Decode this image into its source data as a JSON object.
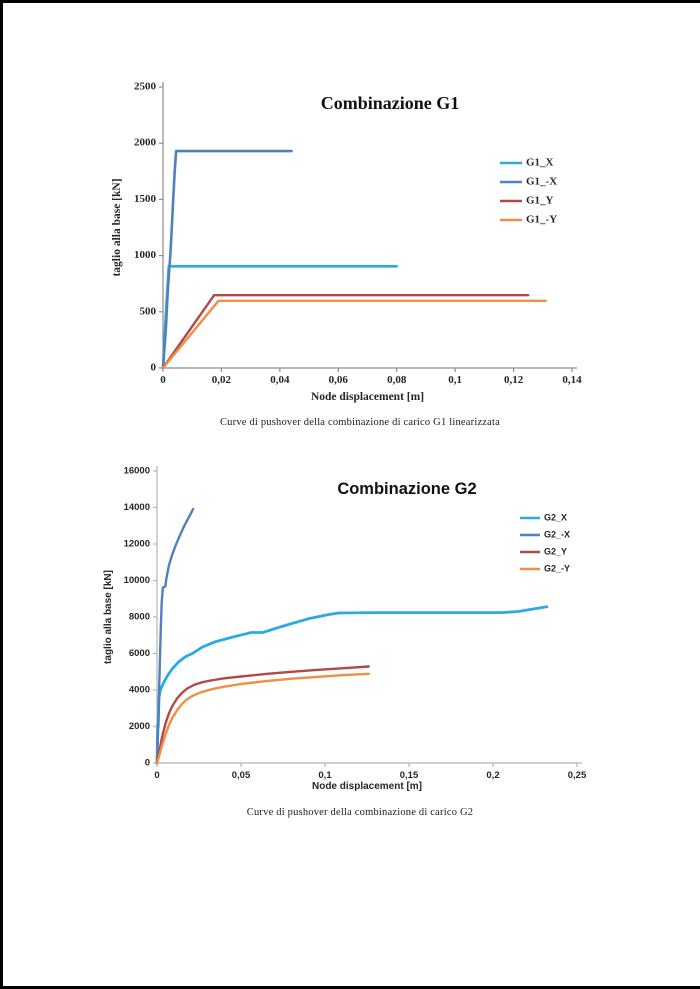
{
  "captions": {
    "chart1": "Curve di pushover della combinazione di carico G1 linearizzata",
    "chart2": "Curve di pushover della combinazione di carico G2"
  },
  "chart_data": [
    {
      "type": "line",
      "title": "Combinazione G1",
      "xlabel": "Node displacement  [m]",
      "ylabel": "taglio alla base [kN]",
      "xlim": [
        0,
        0.14
      ],
      "ylim": [
        0,
        2500
      ],
      "grid": false,
      "legend_position": "right",
      "font": "serif",
      "axis_color": "#8c8c8c",
      "xticks": {
        "values": [
          0,
          0.02,
          0.04,
          0.06,
          0.08,
          0.1,
          0.12,
          0.14
        ],
        "labels": [
          "0",
          "0,02",
          "0,04",
          "0,06",
          "0,08",
          "0,1",
          "0,12",
          "0,14"
        ]
      },
      "yticks": {
        "values": [
          0,
          500,
          1000,
          1500,
          2000,
          2500
        ],
        "labels": [
          "0",
          "500",
          "1000",
          "1500",
          "2000",
          "2500"
        ]
      },
      "series": [
        {
          "name": "G1_X",
          "color": "#29abe2",
          "width": 2.6,
          "points": [
            [
              0,
              0
            ],
            [
              0.001,
              480
            ],
            [
              0.002,
              905
            ],
            [
              0.08,
              905
            ]
          ]
        },
        {
          "name": "G1_-X",
          "color": "#4f81bd",
          "width": 2.6,
          "points": [
            [
              0,
              0
            ],
            [
              0.001,
              350
            ],
            [
              0.0015,
              620
            ],
            [
              0.002,
              820
            ],
            [
              0.0025,
              1000
            ],
            [
              0.003,
              1250
            ],
            [
              0.0035,
              1500
            ],
            [
              0.004,
              1750
            ],
            [
              0.0045,
              1930
            ],
            [
              0.044,
              1930
            ]
          ]
        },
        {
          "name": "G1_Y",
          "color": "#b04a4a",
          "width": 2.4,
          "points": [
            [
              0,
              0
            ],
            [
              0.0175,
              648
            ],
            [
              0.125,
              648
            ]
          ]
        },
        {
          "name": "G1_-Y",
          "color": "#ef8e44",
          "width": 2.4,
          "points": [
            [
              0,
              0
            ],
            [
              0.019,
              598
            ],
            [
              0.131,
              598
            ]
          ]
        }
      ]
    },
    {
      "type": "line",
      "title": "Combinazione G2",
      "xlabel": "Node displacement [m]",
      "ylabel": "taglio alla base [kN]",
      "xlim": [
        0,
        0.25
      ],
      "ylim": [
        0,
        16000
      ],
      "grid": false,
      "legend_position": "right",
      "font": "sans",
      "axis_color": "#b3b3b3",
      "xticks": {
        "values": [
          0,
          0.05,
          0.1,
          0.15,
          0.2,
          0.25
        ],
        "labels": [
          "0",
          "0,05",
          "0,1",
          "0,15",
          "0,2",
          "0,25"
        ]
      },
      "yticks": {
        "values": [
          0,
          2000,
          4000,
          6000,
          8000,
          10000,
          12000,
          14000,
          16000
        ],
        "labels": [
          "0",
          "2000",
          "4000",
          "6000",
          "8000",
          "10000",
          "12000",
          "14000",
          "16000"
        ]
      },
      "series": [
        {
          "name": "G2_X",
          "color": "#29abe2",
          "width": 2.8,
          "points": [
            [
              0,
              0
            ],
            [
              0.0004,
              2100
            ],
            [
              0.0007,
              1950
            ],
            [
              0.0012,
              3600
            ],
            [
              0.002,
              4000
            ],
            [
              0.004,
              4400
            ],
            [
              0.006,
              4750
            ],
            [
              0.009,
              5150
            ],
            [
              0.013,
              5550
            ],
            [
              0.017,
              5830
            ],
            [
              0.021,
              6000
            ],
            [
              0.027,
              6350
            ],
            [
              0.035,
              6650
            ],
            [
              0.045,
              6900
            ],
            [
              0.052,
              7060
            ],
            [
              0.056,
              7150
            ],
            [
              0.063,
              7150
            ],
            [
              0.075,
              7500
            ],
            [
              0.09,
              7900
            ],
            [
              0.102,
              8130
            ],
            [
              0.108,
              8220
            ],
            [
              0.13,
              8240
            ],
            [
              0.205,
              8240
            ],
            [
              0.215,
              8300
            ],
            [
              0.232,
              8560
            ]
          ]
        },
        {
          "name": "G2_-X",
          "color": "#4f81bd",
          "width": 2.4,
          "points": [
            [
              0,
              0
            ],
            [
              0.0008,
              2200
            ],
            [
              0.0015,
              4800
            ],
            [
              0.0022,
              7200
            ],
            [
              0.0028,
              8800
            ],
            [
              0.0032,
              9300
            ],
            [
              0.0035,
              9620
            ],
            [
              0.0045,
              9650
            ],
            [
              0.005,
              9700
            ],
            [
              0.0055,
              10050
            ],
            [
              0.007,
              10800
            ],
            [
              0.009,
              11400
            ],
            [
              0.011,
              11900
            ],
            [
              0.0135,
              12450
            ],
            [
              0.016,
              12950
            ],
            [
              0.018,
              13300
            ],
            [
              0.02,
              13650
            ],
            [
              0.0215,
              13920
            ]
          ]
        },
        {
          "name": "G2_Y",
          "color": "#b04a4a",
          "width": 2.4,
          "points": [
            [
              0,
              0
            ],
            [
              0.0015,
              700
            ],
            [
              0.003,
              1400
            ],
            [
              0.005,
              2150
            ],
            [
              0.007,
              2700
            ],
            [
              0.009,
              3100
            ],
            [
              0.012,
              3550
            ],
            [
              0.015,
              3850
            ],
            [
              0.018,
              4080
            ],
            [
              0.022,
              4280
            ],
            [
              0.027,
              4430
            ],
            [
              0.032,
              4520
            ],
            [
              0.04,
              4640
            ],
            [
              0.05,
              4740
            ],
            [
              0.065,
              4880
            ],
            [
              0.08,
              5000
            ],
            [
              0.095,
              5100
            ],
            [
              0.11,
              5190
            ],
            [
              0.126,
              5290
            ]
          ]
        },
        {
          "name": "G2_-Y",
          "color": "#ef8e44",
          "width": 2.4,
          "points": [
            [
              0,
              0
            ],
            [
              0.0015,
              450
            ],
            [
              0.003,
              950
            ],
            [
              0.005,
              1550
            ],
            [
              0.007,
              2050
            ],
            [
              0.009,
              2450
            ],
            [
              0.012,
              2900
            ],
            [
              0.015,
              3250
            ],
            [
              0.018,
              3500
            ],
            [
              0.022,
              3720
            ],
            [
              0.027,
              3900
            ],
            [
              0.033,
              4050
            ],
            [
              0.04,
              4180
            ],
            [
              0.05,
              4330
            ],
            [
              0.065,
              4490
            ],
            [
              0.08,
              4620
            ],
            [
              0.095,
              4720
            ],
            [
              0.11,
              4810
            ],
            [
              0.126,
              4890
            ]
          ]
        }
      ]
    }
  ]
}
